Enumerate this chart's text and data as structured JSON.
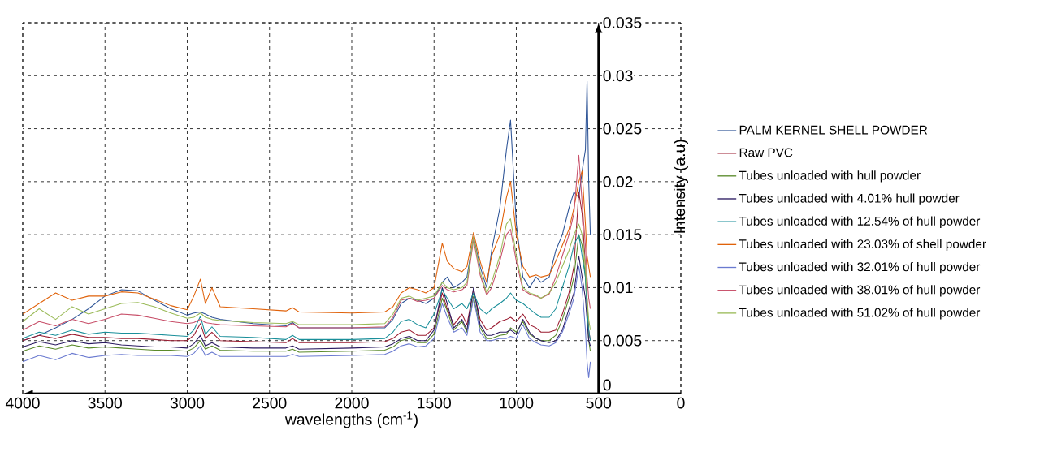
{
  "chart_data": {
    "type": "line",
    "xlabel": "wavelengths (cm$^{-1}$)",
    "ylabel": "Intensity (a.u)",
    "xlim": [
      4000,
      0
    ],
    "ylim": [
      0,
      0.035
    ],
    "xticks": [
      4000,
      3500,
      3000,
      2500,
      2000,
      1500,
      1000,
      500,
      0
    ],
    "yticks": [
      0,
      0.005,
      0.01,
      0.015,
      0.02,
      0.025,
      0.03,
      0.035
    ],
    "grid": true,
    "legend": "right",
    "line_style": "solid",
    "x": [
      4000,
      3900,
      3800,
      3700,
      3600,
      3500,
      3400,
      3300,
      3200,
      3100,
      3000,
      2960,
      2920,
      2890,
      2850,
      2800,
      2600,
      2400,
      2360,
      2320,
      2000,
      1800,
      1750,
      1700,
      1650,
      1600,
      1550,
      1500,
      1450,
      1420,
      1380,
      1330,
      1300,
      1260,
      1220,
      1180,
      1150,
      1100,
      1060,
      1035,
      1000,
      960,
      920,
      880,
      850,
      800,
      760,
      720,
      680,
      650,
      620,
      600,
      580,
      570,
      560,
      550
    ],
    "series": [
      {
        "name": "PALM KERNEL SHELL POWDER",
        "color": "#2f5597",
        "values": [
          0.005,
          0.0055,
          0.0062,
          0.007,
          0.008,
          0.0092,
          0.0098,
          0.0097,
          0.0088,
          0.008,
          0.0074,
          0.0076,
          0.0077,
          0.0075,
          0.0072,
          0.007,
          0.0066,
          0.0064,
          0.0067,
          0.0062,
          0.0062,
          0.0062,
          0.007,
          0.0085,
          0.009,
          0.0088,
          0.0085,
          0.009,
          0.0105,
          0.011,
          0.01,
          0.0105,
          0.011,
          0.0148,
          0.012,
          0.01,
          0.0135,
          0.0175,
          0.023,
          0.0258,
          0.016,
          0.011,
          0.01,
          0.011,
          0.0105,
          0.011,
          0.0135,
          0.015,
          0.0175,
          0.019,
          0.0185,
          0.021,
          0.023,
          0.0295,
          0.02,
          0.015
        ]
      },
      {
        "name": "Raw PVC",
        "color": "#9b1c31",
        "values": [
          0.005,
          0.0055,
          0.0052,
          0.0056,
          0.0053,
          0.0053,
          0.0052,
          0.0052,
          0.0051,
          0.005,
          0.005,
          0.0055,
          0.0066,
          0.0052,
          0.0058,
          0.005,
          0.0049,
          0.0048,
          0.0052,
          0.0048,
          0.0048,
          0.0049,
          0.0052,
          0.0058,
          0.006,
          0.0055,
          0.0055,
          0.0062,
          0.0095,
          0.008,
          0.0065,
          0.0075,
          0.0065,
          0.0098,
          0.007,
          0.006,
          0.0062,
          0.0068,
          0.007,
          0.0072,
          0.0068,
          0.0075,
          0.0065,
          0.0062,
          0.0058,
          0.0058,
          0.006,
          0.0075,
          0.0095,
          0.012,
          0.019,
          0.017,
          0.012,
          0.009,
          0.006,
          0.005
        ]
      },
      {
        "name": "Tubes unloaded with hull powder",
        "color": "#5a8a2a",
        "values": [
          0.004,
          0.0045,
          0.0042,
          0.0046,
          0.0043,
          0.0044,
          0.0043,
          0.0042,
          0.0041,
          0.0041,
          0.004,
          0.0043,
          0.005,
          0.0042,
          0.0045,
          0.0041,
          0.004,
          0.004,
          0.0042,
          0.0039,
          0.004,
          0.0041,
          0.0044,
          0.005,
          0.0052,
          0.0048,
          0.0048,
          0.0056,
          0.009,
          0.0078,
          0.006,
          0.0068,
          0.0058,
          0.0092,
          0.0062,
          0.0052,
          0.0052,
          0.0055,
          0.0056,
          0.0062,
          0.0058,
          0.0068,
          0.0056,
          0.0052,
          0.005,
          0.005,
          0.0055,
          0.007,
          0.009,
          0.011,
          0.015,
          0.014,
          0.011,
          0.008,
          0.005,
          0.004
        ]
      },
      {
        "name": "Tubes unloaded with 4.01% hull powder",
        "color": "#2a1a60",
        "values": [
          0.0044,
          0.0049,
          0.0046,
          0.005,
          0.0047,
          0.0048,
          0.0046,
          0.0045,
          0.0044,
          0.0044,
          0.0043,
          0.0047,
          0.0055,
          0.0045,
          0.0048,
          0.0044,
          0.0043,
          0.0043,
          0.0045,
          0.0042,
          0.0043,
          0.0044,
          0.0047,
          0.0052,
          0.0054,
          0.005,
          0.005,
          0.006,
          0.01,
          0.0085,
          0.0062,
          0.007,
          0.006,
          0.01,
          0.0065,
          0.0055,
          0.0055,
          0.0058,
          0.0058,
          0.006,
          0.0056,
          0.007,
          0.0058,
          0.0052,
          0.005,
          0.0048,
          0.005,
          0.006,
          0.008,
          0.0095,
          0.013,
          0.011,
          0.009,
          0.007,
          0.005,
          0.0045
        ]
      },
      {
        "name": "Tubes unloaded with 12.54% of hull powder",
        "color": "#1a8f9a",
        "values": [
          0.0052,
          0.0058,
          0.0055,
          0.006,
          0.0056,
          0.0058,
          0.0057,
          0.0057,
          0.0056,
          0.0055,
          0.0054,
          0.006,
          0.0073,
          0.0056,
          0.0063,
          0.0054,
          0.0053,
          0.0051,
          0.0055,
          0.0051,
          0.0051,
          0.0052,
          0.0058,
          0.0068,
          0.007,
          0.0065,
          0.0062,
          0.0075,
          0.0098,
          0.009,
          0.008,
          0.0085,
          0.008,
          0.0095,
          0.008,
          0.0075,
          0.008,
          0.0085,
          0.009,
          0.0095,
          0.0088,
          0.0085,
          0.008,
          0.0075,
          0.0072,
          0.0072,
          0.008,
          0.01,
          0.012,
          0.014,
          0.015,
          0.013,
          0.011,
          0.008,
          0.006,
          0.005
        ]
      },
      {
        "name": "Tubes unloaded with 23.03% of shell powder",
        "color": "#e0620a",
        "values": [
          0.0075,
          0.0085,
          0.0095,
          0.0088,
          0.0092,
          0.0092,
          0.0096,
          0.0095,
          0.0089,
          0.0083,
          0.0079,
          0.0092,
          0.0108,
          0.0085,
          0.01,
          0.0082,
          0.008,
          0.0078,
          0.0081,
          0.0077,
          0.0076,
          0.0077,
          0.0082,
          0.0095,
          0.01,
          0.0098,
          0.0095,
          0.01,
          0.0142,
          0.0125,
          0.0118,
          0.0115,
          0.012,
          0.0152,
          0.0125,
          0.0105,
          0.013,
          0.015,
          0.0185,
          0.02,
          0.015,
          0.012,
          0.011,
          0.0112,
          0.011,
          0.0112,
          0.0125,
          0.014,
          0.0155,
          0.0175,
          0.02,
          0.021,
          0.016,
          0.013,
          0.012,
          0.011
        ]
      },
      {
        "name": "Tubes unloaded with 32.01% of hull powder",
        "color": "#6a7ad0",
        "values": [
          0.003,
          0.0036,
          0.0032,
          0.0038,
          0.0034,
          0.0036,
          0.0037,
          0.0036,
          0.0036,
          0.0036,
          0.0035,
          0.0038,
          0.0045,
          0.0036,
          0.0039,
          0.0035,
          0.0035,
          0.0035,
          0.0037,
          0.0035,
          0.0036,
          0.0037,
          0.004,
          0.0045,
          0.0047,
          0.0044,
          0.0045,
          0.0052,
          0.0085,
          0.0072,
          0.0058,
          0.0062,
          0.0055,
          0.009,
          0.0058,
          0.005,
          0.005,
          0.0052,
          0.0052,
          0.0054,
          0.0052,
          0.0065,
          0.0052,
          0.0048,
          0.0046,
          0.0045,
          0.0048,
          0.0058,
          0.0075,
          0.009,
          0.012,
          0.01,
          0.006,
          0.003,
          0.0015,
          0.003
        ]
      },
      {
        "name": "Tubes unloaded with 38.01% of hull powder",
        "color": "#c8506a",
        "values": [
          0.006,
          0.0068,
          0.0064,
          0.007,
          0.0066,
          0.007,
          0.0075,
          0.0074,
          0.0071,
          0.0068,
          0.0066,
          0.0067,
          0.007,
          0.0067,
          0.0066,
          0.0065,
          0.0064,
          0.0063,
          0.0066,
          0.0062,
          0.0062,
          0.0063,
          0.0072,
          0.0088,
          0.009,
          0.0087,
          0.0088,
          0.009,
          0.0102,
          0.0098,
          0.0096,
          0.0098,
          0.0102,
          0.0145,
          0.0112,
          0.0093,
          0.01,
          0.0125,
          0.015,
          0.0155,
          0.0125,
          0.0098,
          0.0094,
          0.0092,
          0.009,
          0.0094,
          0.011,
          0.013,
          0.015,
          0.017,
          0.0225,
          0.018,
          0.014,
          0.011,
          0.009,
          0.008
        ]
      },
      {
        "name": "Tubes unloaded with 51.02% of hull powder",
        "color": "#9bbb59",
        "values": [
          0.0068,
          0.008,
          0.007,
          0.0082,
          0.0075,
          0.008,
          0.0085,
          0.0086,
          0.0082,
          0.0076,
          0.0071,
          0.0072,
          0.0076,
          0.0072,
          0.007,
          0.0069,
          0.0067,
          0.0066,
          0.0068,
          0.0065,
          0.0065,
          0.0066,
          0.0075,
          0.009,
          0.0092,
          0.0088,
          0.009,
          0.0092,
          0.0105,
          0.01,
          0.0098,
          0.01,
          0.0105,
          0.0148,
          0.0115,
          0.0095,
          0.0105,
          0.013,
          0.016,
          0.0165,
          0.013,
          0.01,
          0.0095,
          0.0093,
          0.009,
          0.0095,
          0.0105,
          0.012,
          0.0135,
          0.015,
          0.016,
          0.015,
          0.012,
          0.009,
          0.007,
          0.006
        ]
      }
    ]
  }
}
